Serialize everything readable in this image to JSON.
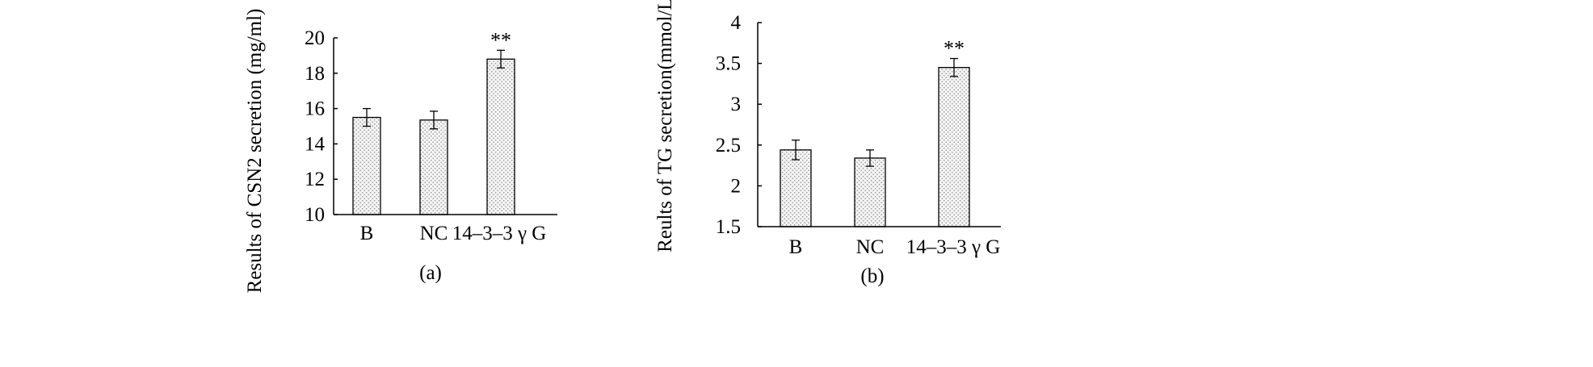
{
  "chart_data": [
    {
      "type": "bar",
      "panel_label": "(a)",
      "title": "",
      "ylabel": "Results of CSN2 secretion (mg/ml)",
      "xlabel": "",
      "categories": [
        "B",
        "NC",
        "14–3–3 γ G"
      ],
      "values": [
        15.5,
        15.35,
        18.8
      ],
      "errors": [
        0.5,
        0.5,
        0.5
      ],
      "annotations": [
        "",
        "",
        "**"
      ],
      "ylim": [
        10,
        20
      ],
      "yticks": [
        "10",
        "12",
        "14",
        "16",
        "18",
        "20"
      ],
      "grid": false,
      "legend": "none",
      "bar_fill": "stippled-light-gray"
    },
    {
      "type": "bar",
      "panel_label": "(b)",
      "title": "",
      "ylabel": "Reults of TG secretion(mmol/L)",
      "xlabel": "",
      "categories": [
        "B",
        "NC",
        "14–3–3 γ G"
      ],
      "values": [
        2.44,
        2.34,
        3.45
      ],
      "errors": [
        0.12,
        0.1,
        0.11
      ],
      "annotations": [
        "",
        "",
        "**"
      ],
      "ylim": [
        1.5,
        4
      ],
      "yticks": [
        "1.5",
        "2",
        "2.5",
        "3",
        "3.5",
        "4"
      ],
      "grid": false,
      "legend": "none",
      "bar_fill": "stippled-light-gray"
    }
  ],
  "colors": {
    "axis": "#000000",
    "bar_fill": "#f2f2f2",
    "stipple": "#8a8a8a"
  }
}
